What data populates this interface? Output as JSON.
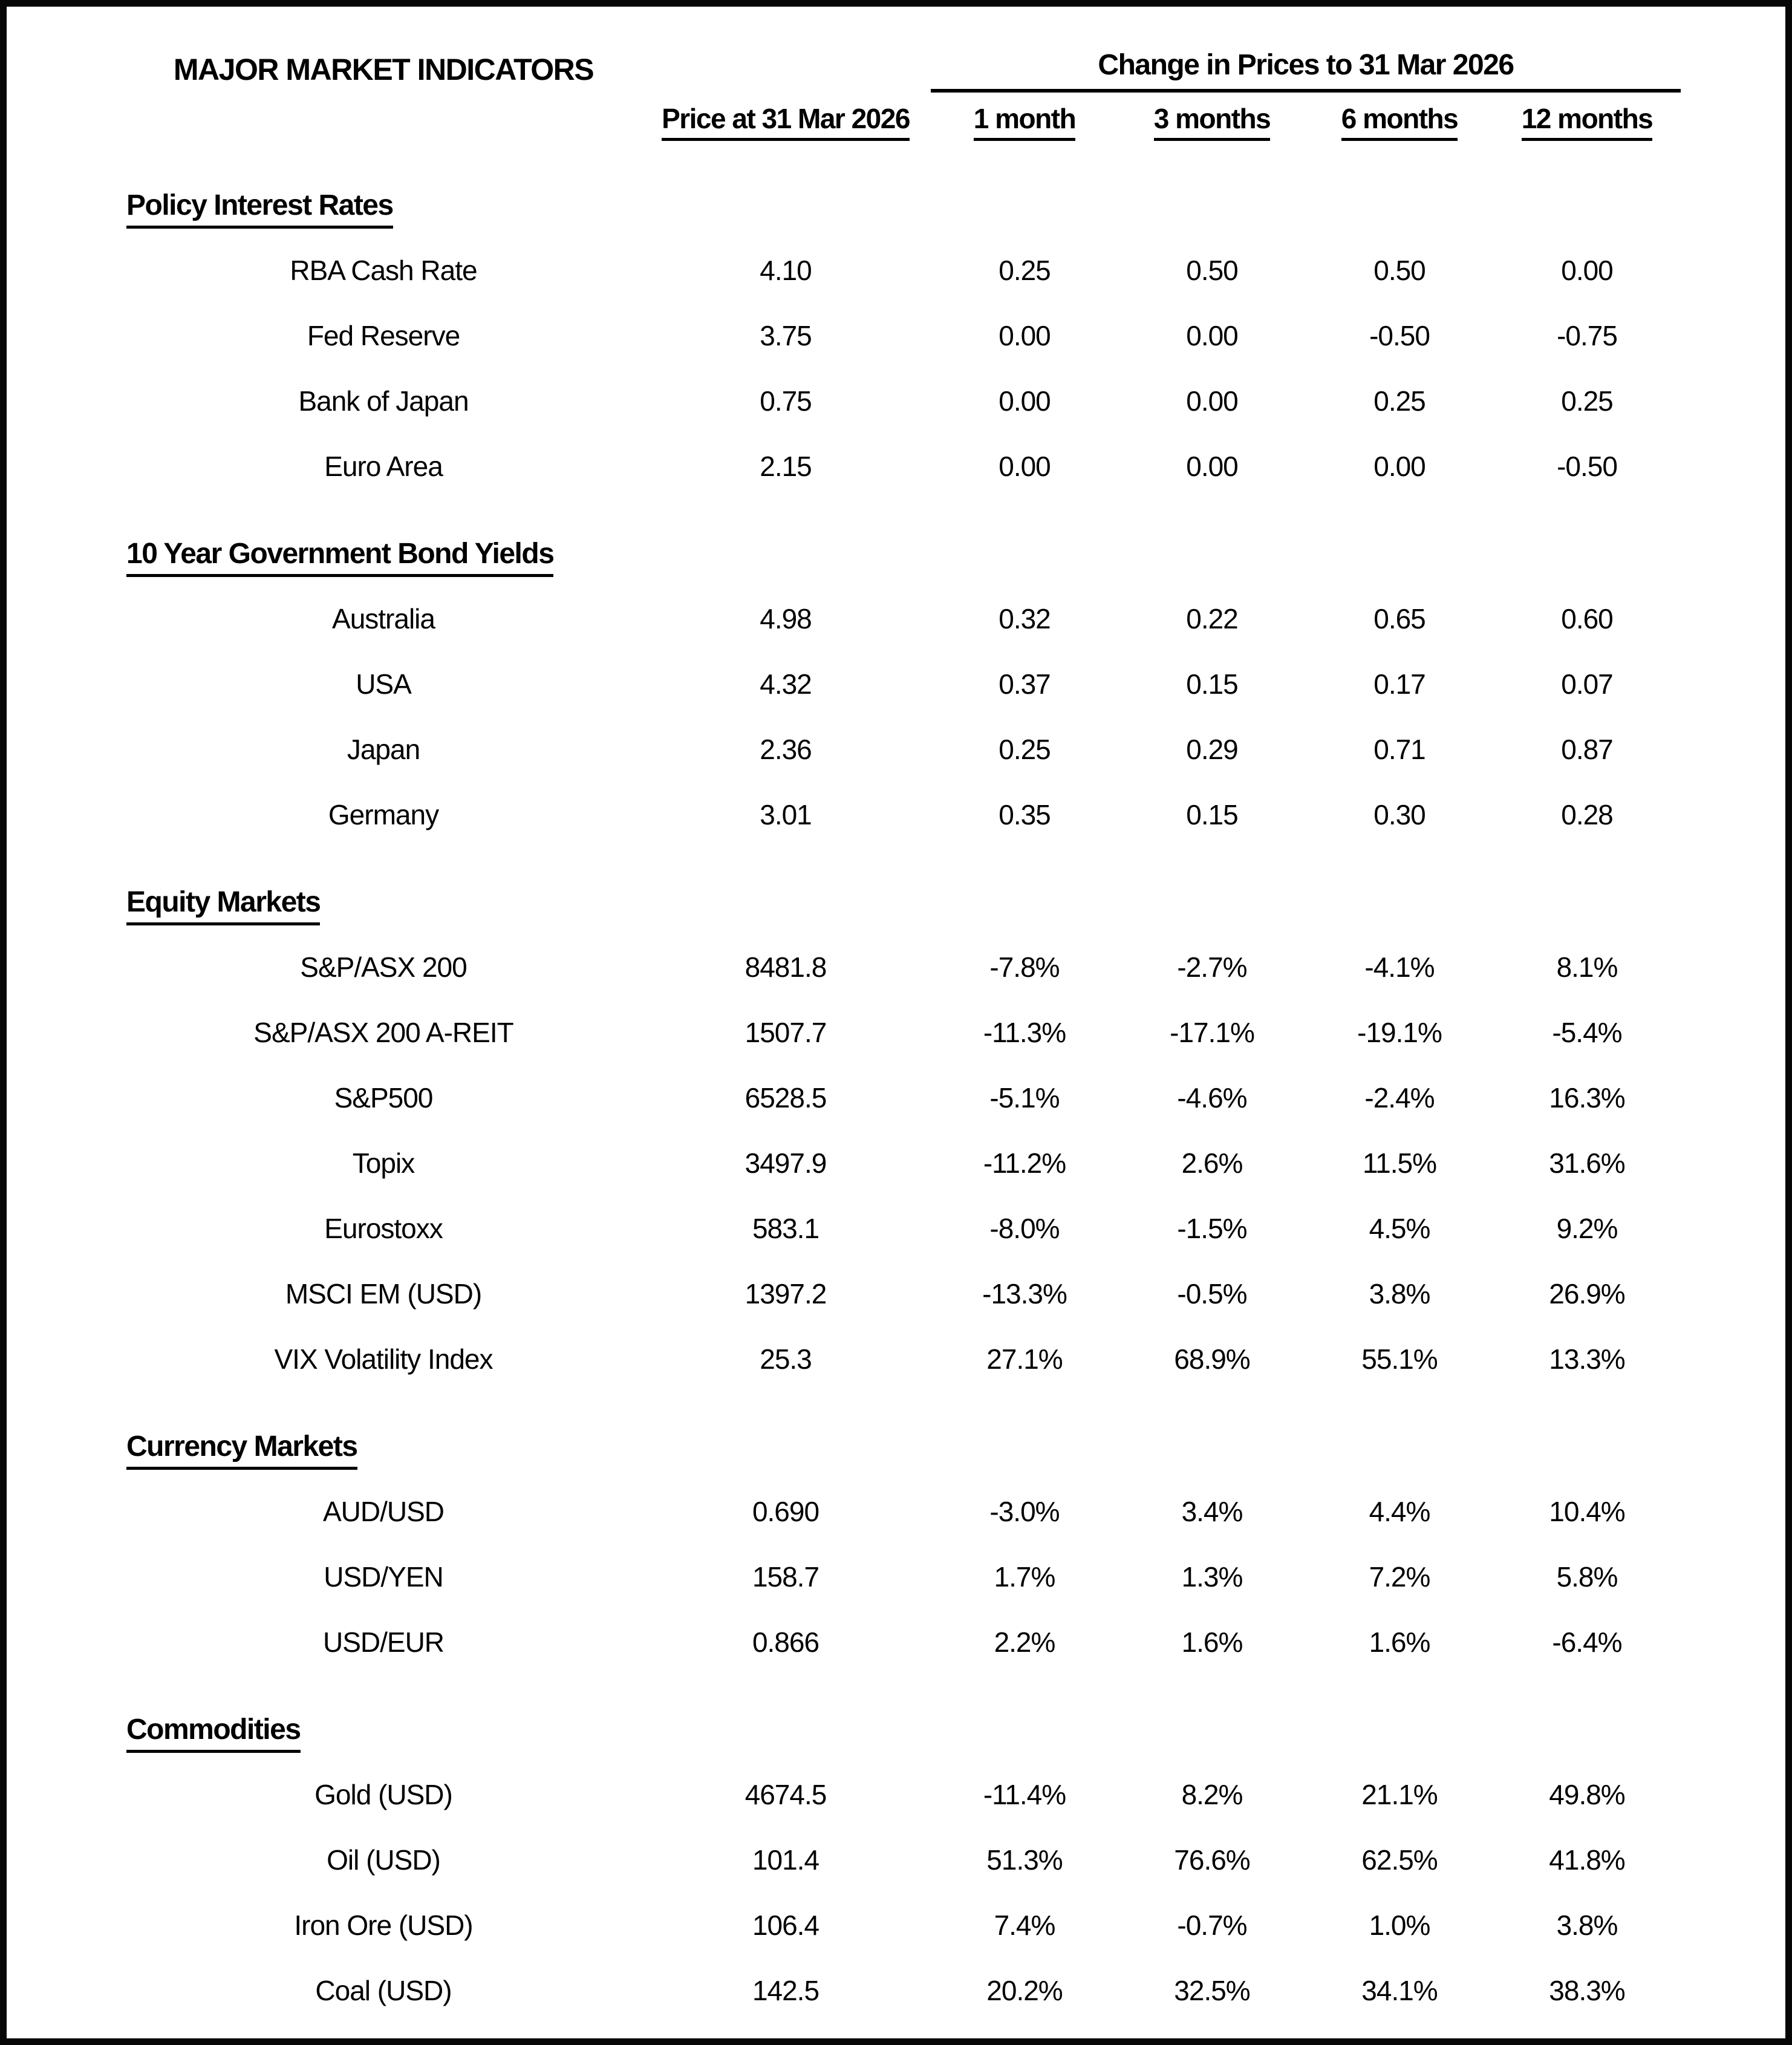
{
  "title": "MAJOR MARKET INDICATORS",
  "header": {
    "change_group": "Change in Prices to 31 Mar 2026",
    "price_col": "Price at 31 Mar 2026",
    "period_cols": [
      "1 month",
      "3 months",
      "6 months",
      "12 months"
    ]
  },
  "sections": [
    {
      "heading": "Policy Interest Rates",
      "rows": [
        {
          "label": "RBA Cash Rate",
          "price": "4.10",
          "changes": [
            "0.25",
            "0.50",
            "0.50",
            "0.00"
          ]
        },
        {
          "label": "Fed Reserve",
          "price": "3.75",
          "changes": [
            "0.00",
            "0.00",
            "-0.50",
            "-0.75"
          ]
        },
        {
          "label": "Bank of Japan",
          "price": "0.75",
          "changes": [
            "0.00",
            "0.00",
            "0.25",
            "0.25"
          ]
        },
        {
          "label": "Euro Area",
          "price": "2.15",
          "changes": [
            "0.00",
            "0.00",
            "0.00",
            "-0.50"
          ]
        }
      ]
    },
    {
      "heading": "10 Year Government Bond Yields",
      "rows": [
        {
          "label": "Australia",
          "price": "4.98",
          "changes": [
            "0.32",
            "0.22",
            "0.65",
            "0.60"
          ]
        },
        {
          "label": "USA",
          "price": "4.32",
          "changes": [
            "0.37",
            "0.15",
            "0.17",
            "0.07"
          ]
        },
        {
          "label": "Japan",
          "price": "2.36",
          "changes": [
            "0.25",
            "0.29",
            "0.71",
            "0.87"
          ]
        },
        {
          "label": "Germany",
          "price": "3.01",
          "changes": [
            "0.35",
            "0.15",
            "0.30",
            "0.28"
          ]
        }
      ]
    },
    {
      "heading": "Equity Markets",
      "rows": [
        {
          "label": "S&P/ASX 200",
          "price": "8481.8",
          "changes": [
            "-7.8%",
            "-2.7%",
            "-4.1%",
            "8.1%"
          ]
        },
        {
          "label": "S&P/ASX 200 A-REIT",
          "price": "1507.7",
          "changes": [
            "-11.3%",
            "-17.1%",
            "-19.1%",
            "-5.4%"
          ]
        },
        {
          "label": "S&P500",
          "price": "6528.5",
          "changes": [
            "-5.1%",
            "-4.6%",
            "-2.4%",
            "16.3%"
          ]
        },
        {
          "label": "Topix",
          "price": "3497.9",
          "changes": [
            "-11.2%",
            "2.6%",
            "11.5%",
            "31.6%"
          ]
        },
        {
          "label": "Eurostoxx",
          "price": "583.1",
          "changes": [
            "-8.0%",
            "-1.5%",
            "4.5%",
            "9.2%"
          ]
        },
        {
          "label": "MSCI EM (USD)",
          "price": "1397.2",
          "changes": [
            "-13.3%",
            "-0.5%",
            "3.8%",
            "26.9%"
          ]
        },
        {
          "label": "VIX Volatility Index",
          "price": "25.3",
          "changes": [
            "27.1%",
            "68.9%",
            "55.1%",
            "13.3%"
          ]
        }
      ]
    },
    {
      "heading": "Currency Markets",
      "rows": [
        {
          "label": "AUD/USD",
          "price": "0.690",
          "changes": [
            "-3.0%",
            "3.4%",
            "4.4%",
            "10.4%"
          ]
        },
        {
          "label": "USD/YEN",
          "price": "158.7",
          "changes": [
            "1.7%",
            "1.3%",
            "7.2%",
            "5.8%"
          ]
        },
        {
          "label": "USD/EUR",
          "price": "0.866",
          "changes": [
            "2.2%",
            "1.6%",
            "1.6%",
            "-6.4%"
          ]
        }
      ]
    },
    {
      "heading": "Commodities",
      "rows": [
        {
          "label": "Gold (USD)",
          "price": "4674.5",
          "changes": [
            "-11.4%",
            "8.2%",
            "21.1%",
            "49.8%"
          ]
        },
        {
          "label": "Oil (USD)",
          "price": "101.4",
          "changes": [
            "51.3%",
            "76.6%",
            "62.5%",
            "41.8%"
          ]
        },
        {
          "label": "Iron Ore (USD)",
          "price": "106.4",
          "changes": [
            "7.4%",
            "-0.7%",
            "1.0%",
            "3.8%"
          ]
        },
        {
          "label": "Coal (USD)",
          "price": "142.5",
          "changes": [
            "20.2%",
            "32.5%",
            "34.1%",
            "38.3%"
          ]
        }
      ]
    }
  ],
  "colors": {
    "text": "#000000",
    "background": "#ffffff",
    "frame": "#070707"
  }
}
